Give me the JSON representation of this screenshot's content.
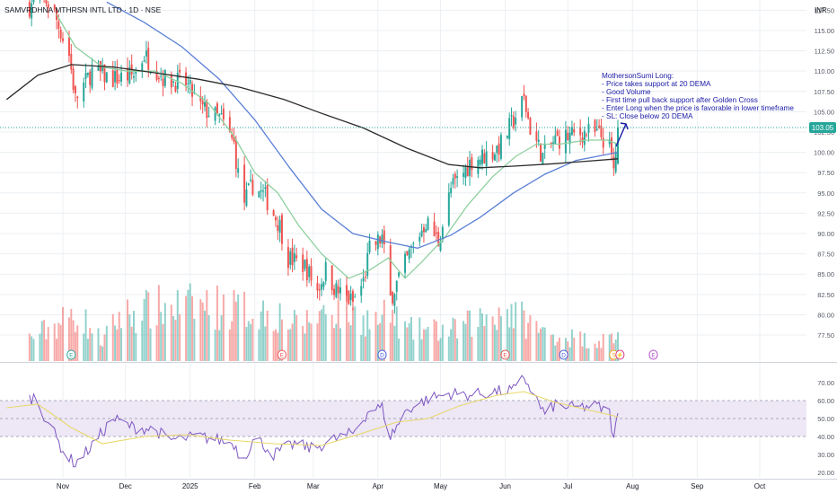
{
  "header": {
    "symbol_title": "SAMVRDHNA MTHRSN INTL LTD · 1D · NSE",
    "currency": "INR"
  },
  "annotation": {
    "lines": [
      "MothersonSumi Long:",
      "- Price takes support at 20 DEMA",
      "- Good Volume",
      "- First time pull back support after Golden Cross",
      "- Enter Long when the price is favorable in lower timeframe",
      "- SL: Close below 20 DEMA"
    ],
    "color": "#1a1aa6"
  },
  "colors": {
    "up": "#26a69a",
    "down": "#ef5350",
    "ema_fast": "#8fcf9e",
    "ema_mid": "#5b7fd6",
    "ema_slow": "#2b2b2b",
    "rsi": "#7e57c2",
    "rsi_ma": "#e8d86a",
    "rsi_band": "#ede7f6",
    "grid": "#eceff3",
    "price_tag": "#26a69a"
  },
  "chart_data": [
    {
      "type": "candlestick",
      "pane": "price",
      "ylim": [
        74.3,
        118.2
      ],
      "yticks": [
        77.5,
        80.0,
        82.5,
        85.0,
        87.5,
        90.0,
        92.5,
        95.0,
        97.5,
        100.0,
        102.5,
        105.0,
        107.5,
        110.0,
        112.5,
        115.0,
        117.5
      ],
      "ytick_labels": [
        "77.50",
        "80.00",
        "82.50",
        "85.00",
        "87.50",
        "90.00",
        "92.50",
        "95.00",
        "97.50",
        "100.00",
        "102.50",
        "105.00",
        "107.50",
        "110.00",
        "112.50",
        "115.00",
        "117.50"
      ],
      "last_price": 103.05,
      "last_price_label": "103.05",
      "xticks": [
        {
          "label": "Nov",
          "date": "2024-11-01"
        },
        {
          "label": "Dec",
          "date": "2024-12-01"
        },
        {
          "label": "2025",
          "date": "2025-01-01"
        },
        {
          "label": "Feb",
          "date": "2025-02-01"
        },
        {
          "label": "Mar",
          "date": "2025-03-01"
        },
        {
          "label": "Apr",
          "date": "2025-04-01"
        },
        {
          "label": "May",
          "date": "2025-05-01"
        },
        {
          "label": "Jun",
          "date": "2025-06-01"
        },
        {
          "label": "Jul",
          "date": "2025-07-01"
        },
        {
          "label": "Aug",
          "date": "2025-08-01"
        },
        {
          "label": "Sep",
          "date": "2025-09-01"
        },
        {
          "label": "Oct",
          "date": "2025-10-01"
        }
      ],
      "price_path": [
        [
          "2024-10-16",
          118.0
        ],
        [
          "2024-10-22",
          119.5
        ],
        [
          "2024-10-28",
          117.0
        ],
        [
          "2024-11-04",
          112.0
        ],
        [
          "2024-11-07",
          106.5
        ],
        [
          "2024-11-15",
          110.0
        ],
        [
          "2024-11-25",
          109.0
        ],
        [
          "2024-12-05",
          109.5
        ],
        [
          "2024-12-10",
          112.0
        ],
        [
          "2024-12-20",
          109.0
        ],
        [
          "2024-12-30",
          108.5
        ],
        [
          "2025-01-06",
          105.5
        ],
        [
          "2025-01-16",
          104.0
        ],
        [
          "2025-01-22",
          101.0
        ],
        [
          "2025-01-26",
          93.5
        ],
        [
          "2025-01-31",
          96.0
        ],
        [
          "2025-02-06",
          94.5
        ],
        [
          "2025-02-13",
          91.0
        ],
        [
          "2025-02-17",
          87.0
        ],
        [
          "2025-02-25",
          86.0
        ],
        [
          "2025-03-03",
          83.0
        ],
        [
          "2025-03-07",
          85.5
        ],
        [
          "2025-03-12",
          83.0
        ],
        [
          "2025-03-20",
          81.5
        ],
        [
          "2025-03-25",
          84.0
        ],
        [
          "2025-03-28",
          88.0
        ],
        [
          "2025-04-03",
          89.5
        ],
        [
          "2025-04-07",
          82.0
        ],
        [
          "2025-04-11",
          84.5
        ],
        [
          "2025-04-17",
          88.0
        ],
        [
          "2025-04-24",
          91.5
        ],
        [
          "2025-04-30",
          89.0
        ],
        [
          "2025-05-06",
          95.5
        ],
        [
          "2025-05-12",
          97.5
        ],
        [
          "2025-05-16",
          99.0
        ],
        [
          "2025-05-26",
          100.0
        ],
        [
          "2025-05-30",
          101.0
        ],
        [
          "2025-06-04",
          103.5
        ],
        [
          "2025-06-10",
          106.5
        ],
        [
          "2025-06-13",
          103.0
        ],
        [
          "2025-06-19",
          99.5
        ],
        [
          "2025-06-25",
          101.5
        ],
        [
          "2025-07-02",
          102.0
        ],
        [
          "2025-07-10",
          102.5
        ],
        [
          "2025-07-17",
          102.0
        ],
        [
          "2025-07-21",
          100.5
        ],
        [
          "2025-07-23",
          97.8
        ],
        [
          "2025-07-25",
          103.05
        ]
      ],
      "series": [
        {
          "name": "",
          "indicator": "fast EMA",
          "color_key": "ema_fast",
          "points": [
            [
              "2024-10-29",
              117.0
            ],
            [
              "2024-11-07",
              113.0
            ],
            [
              "2024-11-20",
              110.5
            ],
            [
              "2024-12-02",
              110.0
            ],
            [
              "2024-12-15",
              110.0
            ],
            [
              "2024-12-28",
              108.5
            ],
            [
              "2025-01-10",
              106.0
            ],
            [
              "2025-01-22",
              102.0
            ],
            [
              "2025-02-01",
              97.5
            ],
            [
              "2025-02-12",
              95.0
            ],
            [
              "2025-02-22",
              91.0
            ],
            [
              "2025-03-05",
              87.5
            ],
            [
              "2025-03-18",
              84.5
            ],
            [
              "2025-03-28",
              85.5
            ],
            [
              "2025-04-06",
              87.0
            ],
            [
              "2025-04-14",
              84.5
            ],
            [
              "2025-04-22",
              86.5
            ],
            [
              "2025-05-03",
              89.5
            ],
            [
              "2025-05-14",
              93.5
            ],
            [
              "2025-05-26",
              97.0
            ],
            [
              "2025-06-06",
              99.5
            ],
            [
              "2025-06-16",
              101.0
            ],
            [
              "2025-06-27",
              101.0
            ],
            [
              "2025-07-10",
              101.5
            ],
            [
              "2025-07-20",
              101.5
            ],
            [
              "2025-07-25",
              101.0
            ]
          ]
        },
        {
          "name": "",
          "indicator": "mid EMA",
          "color_key": "ema_mid",
          "points": [
            [
              "2024-11-22",
              118.5
            ],
            [
              "2024-12-10",
              116.0
            ],
            [
              "2024-12-28",
              113.0
            ],
            [
              "2025-01-15",
              109.0
            ],
            [
              "2025-02-01",
              104.0
            ],
            [
              "2025-02-18",
              98.0
            ],
            [
              "2025-03-05",
              93.0
            ],
            [
              "2025-03-20",
              90.0
            ],
            [
              "2025-04-05",
              89.0
            ],
            [
              "2025-04-20",
              88.2
            ],
            [
              "2025-05-06",
              89.8
            ],
            [
              "2025-05-20",
              92.0
            ],
            [
              "2025-06-05",
              95.0
            ],
            [
              "2025-06-20",
              97.3
            ],
            [
              "2025-07-05",
              99.0
            ],
            [
              "2025-07-25",
              100.0
            ]
          ]
        },
        {
          "name": "",
          "indicator": "slow EMA",
          "color_key": "ema_slow",
          "points": [
            [
              "2024-10-05",
              106.5
            ],
            [
              "2024-10-20",
              109.5
            ],
            [
              "2024-11-05",
              110.8
            ],
            [
              "2024-11-25",
              110.5
            ],
            [
              "2024-12-15",
              109.8
            ],
            [
              "2025-01-05",
              109.0
            ],
            [
              "2025-01-25",
              108.0
            ],
            [
              "2025-02-15",
              106.5
            ],
            [
              "2025-03-05",
              104.8
            ],
            [
              "2025-03-25",
              103.0
            ],
            [
              "2025-04-15",
              100.5
            ],
            [
              "2025-05-05",
              98.5
            ],
            [
              "2025-05-20",
              98.1
            ],
            [
              "2025-06-05",
              98.3
            ],
            [
              "2025-06-25",
              98.6
            ],
            [
              "2025-07-10",
              98.9
            ],
            [
              "2025-07-25",
              99.2
            ]
          ]
        }
      ],
      "volume_ylim": [
        0,
        105
      ],
      "volume_points": [
        [
          "2024-10-05",
          20
        ],
        [
          "2024-11-08",
          85
        ],
        [
          "2024-11-20",
          35
        ],
        [
          "2024-11-28",
          80
        ],
        [
          "2024-12-16",
          95
        ],
        [
          "2025-01-08",
          100
        ],
        [
          "2025-02-12",
          85
        ],
        [
          "2025-02-22",
          60
        ],
        [
          "2025-03-08",
          95
        ],
        [
          "2025-04-01",
          70
        ],
        [
          "2025-04-07",
          85
        ],
        [
          "2025-04-14",
          55
        ],
        [
          "2025-05-08",
          55
        ],
        [
          "2025-06-01",
          95
        ],
        [
          "2025-06-20",
          50
        ],
        [
          "2025-07-15",
          35
        ],
        [
          "2025-07-25",
          45
        ]
      ],
      "event_markers": [
        {
          "label": "E",
          "date": "2024-11-05",
          "color": "#26a69a"
        },
        {
          "label": "E",
          "date": "2025-02-14",
          "color": "#ef5350"
        },
        {
          "label": "D",
          "date": "2025-04-03",
          "color": "#3f5bd9"
        },
        {
          "label": "E",
          "date": "2025-06-01",
          "color": "#ef5350"
        },
        {
          "label": "D",
          "date": "2025-06-29",
          "color": "#3f5bd9"
        },
        {
          "label": "S",
          "date": "2025-07-23",
          "color": "#f5a623"
        },
        {
          "label": "⚡",
          "date": "2025-07-26",
          "color": "#d63384"
        },
        {
          "label": "E",
          "date": "2025-08-11",
          "color": "#b04ac8"
        }
      ]
    },
    {
      "type": "line",
      "pane": "rsi",
      "ylim": [
        17,
        76
      ],
      "yticks": [
        20,
        30,
        40,
        50,
        60,
        70
      ],
      "ytick_labels": [
        "20.00",
        "30.00",
        "40.00",
        "50.00",
        "60.00",
        "70.00"
      ],
      "band": [
        40,
        60
      ],
      "midline": 50,
      "series": [
        {
          "name": "",
          "indicator": "RSI",
          "color_key": "rsi",
          "points": [
            [
              "2024-10-05",
              55
            ],
            [
              "2024-10-18",
              62
            ],
            [
              "2024-10-25",
              48
            ],
            [
              "2024-11-02",
              30
            ],
            [
              "2024-11-07",
              25
            ],
            [
              "2024-11-15",
              35
            ],
            [
              "2024-11-25",
              50
            ],
            [
              "2024-12-05",
              45
            ],
            [
              "2024-12-15",
              44
            ],
            [
              "2024-12-22",
              38
            ],
            [
              "2025-01-05",
              40
            ],
            [
              "2025-01-15",
              38
            ],
            [
              "2025-01-22",
              36
            ],
            [
              "2025-01-26",
              26
            ],
            [
              "2025-02-01",
              40
            ],
            [
              "2025-02-10",
              30
            ],
            [
              "2025-02-20",
              36
            ],
            [
              "2025-03-01",
              33
            ],
            [
              "2025-03-10",
              38
            ],
            [
              "2025-03-20",
              42
            ],
            [
              "2025-03-28",
              55
            ],
            [
              "2025-04-03",
              56
            ],
            [
              "2025-04-07",
              40
            ],
            [
              "2025-04-15",
              55
            ],
            [
              "2025-04-25",
              61
            ],
            [
              "2025-05-06",
              64
            ],
            [
              "2025-05-16",
              63
            ],
            [
              "2025-05-28",
              65
            ],
            [
              "2025-06-06",
              66
            ],
            [
              "2025-06-10",
              73
            ],
            [
              "2025-06-14",
              65
            ],
            [
              "2025-06-20",
              52
            ],
            [
              "2025-06-25",
              58
            ],
            [
              "2025-07-03",
              56
            ],
            [
              "2025-07-15",
              57
            ],
            [
              "2025-07-21",
              53
            ],
            [
              "2025-07-23",
              38
            ],
            [
              "2025-07-25",
              53
            ]
          ]
        },
        {
          "name": "",
          "indicator": "RSI-based MA",
          "color_key": "rsi_ma",
          "points": [
            [
              "2024-10-05",
              56
            ],
            [
              "2024-10-20",
              58
            ],
            [
              "2024-11-05",
              45
            ],
            [
              "2024-11-20",
              36
            ],
            [
              "2024-12-10",
              40
            ],
            [
              "2024-12-31",
              41
            ],
            [
              "2025-01-20",
              38
            ],
            [
              "2025-02-10",
              36
            ],
            [
              "2025-03-05",
              35
            ],
            [
              "2025-03-25",
              42
            ],
            [
              "2025-04-10",
              48
            ],
            [
              "2025-04-25",
              50
            ],
            [
              "2025-05-10",
              57
            ],
            [
              "2025-05-28",
              63
            ],
            [
              "2025-06-10",
              65
            ],
            [
              "2025-06-25",
              59
            ],
            [
              "2025-07-10",
              55
            ],
            [
              "2025-07-25",
              51
            ]
          ]
        }
      ]
    }
  ]
}
